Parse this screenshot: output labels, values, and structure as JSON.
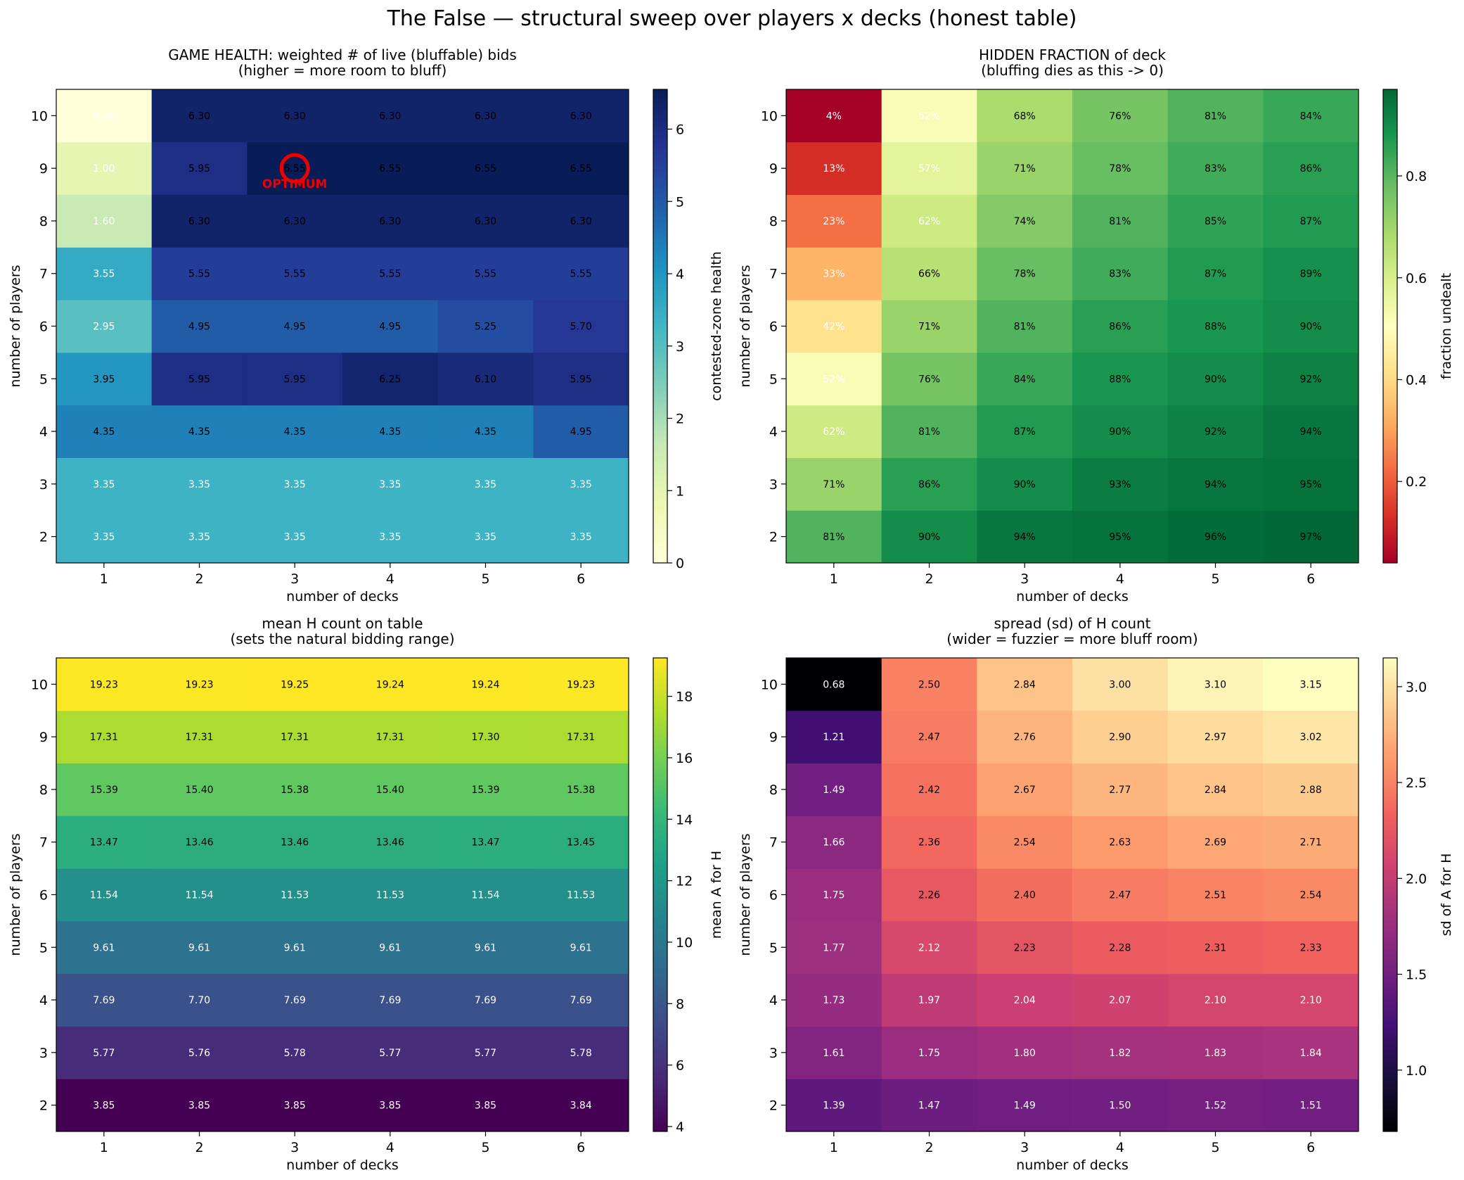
{
  "suptitle": "The False — structural sweep over players x decks (honest table)",
  "chart_data": [
    {
      "type": "heatmap",
      "title_lines": [
        "GAME HEALTH: weighted # of live (bluffable) bids",
        "(higher = more room to bluff)"
      ],
      "xlabel": "number of decks",
      "ylabel": "number of players",
      "x": [
        1,
        2,
        3,
        4,
        5,
        6
      ],
      "y": [
        2,
        3,
        4,
        5,
        6,
        7,
        8,
        9,
        10
      ],
      "values": [
        [
          3.35,
          3.35,
          3.35,
          3.35,
          3.35,
          3.35
        ],
        [
          3.35,
          3.35,
          3.35,
          3.35,
          3.35,
          3.35
        ],
        [
          4.35,
          4.35,
          4.35,
          4.35,
          4.35,
          4.95
        ],
        [
          3.95,
          5.95,
          5.95,
          6.25,
          6.1,
          5.95
        ],
        [
          2.95,
          4.95,
          4.95,
          4.95,
          5.25,
          5.7
        ],
        [
          3.55,
          5.55,
          5.55,
          5.55,
          5.55,
          5.55
        ],
        [
          1.6,
          6.3,
          6.3,
          6.3,
          6.3,
          6.3
        ],
        [
          1.0,
          5.95,
          6.55,
          6.55,
          6.55,
          6.55
        ],
        [
          0.0,
          6.3,
          6.3,
          6.3,
          6.3,
          6.3
        ]
      ],
      "cell_labels": [
        [
          "3.35",
          "3.35",
          "3.35",
          "3.35",
          "3.35",
          "3.35"
        ],
        [
          "3.35",
          "3.35",
          "3.35",
          "3.35",
          "3.35",
          "3.35"
        ],
        [
          "4.35",
          "4.35",
          "4.35",
          "4.35",
          "4.35",
          "4.95"
        ],
        [
          "3.95",
          "5.95",
          "5.95",
          "6.25",
          "6.10",
          "5.95"
        ],
        [
          "2.95",
          "4.95",
          "4.95",
          "4.95",
          "5.25",
          "5.70"
        ],
        [
          "3.55",
          "5.55",
          "5.55",
          "5.55",
          "5.55",
          "5.55"
        ],
        [
          "1.60",
          "6.30",
          "6.30",
          "6.30",
          "6.30",
          "6.30"
        ],
        [
          "1.00",
          "5.95",
          "6.55",
          "6.55",
          "6.55",
          "6.55"
        ],
        [
          "0.00",
          "6.30",
          "6.30",
          "6.30",
          "6.30",
          "6.30"
        ]
      ],
      "colormap": "YlGnBu",
      "vmin": 0,
      "vmax": 6.55,
      "colorbar_label": "contested-zone health",
      "colorbar_ticks": [
        0,
        1,
        2,
        3,
        4,
        5,
        6
      ],
      "colorbar_tick_labels": [
        "0",
        "1",
        "2",
        "3",
        "4",
        "5",
        "6"
      ],
      "text_dark_above": 0.6,
      "marker": {
        "label": "OPTIMUM",
        "decks": 3,
        "players": 9,
        "color": "#ee0000"
      }
    },
    {
      "type": "heatmap",
      "title_lines": [
        "HIDDEN FRACTION of deck",
        "(bluffing dies as this -> 0)"
      ],
      "xlabel": "number of decks",
      "ylabel": "number of players",
      "x": [
        1,
        2,
        3,
        4,
        5,
        6
      ],
      "y": [
        2,
        3,
        4,
        5,
        6,
        7,
        8,
        9,
        10
      ],
      "values": [
        [
          0.81,
          0.9,
          0.94,
          0.95,
          0.96,
          0.97
        ],
        [
          0.71,
          0.86,
          0.9,
          0.93,
          0.94,
          0.95
        ],
        [
          0.62,
          0.81,
          0.87,
          0.9,
          0.92,
          0.94
        ],
        [
          0.52,
          0.76,
          0.84,
          0.88,
          0.9,
          0.92
        ],
        [
          0.42,
          0.71,
          0.81,
          0.86,
          0.88,
          0.9
        ],
        [
          0.33,
          0.66,
          0.78,
          0.83,
          0.87,
          0.89
        ],
        [
          0.23,
          0.62,
          0.74,
          0.81,
          0.85,
          0.87
        ],
        [
          0.13,
          0.57,
          0.71,
          0.78,
          0.83,
          0.86
        ],
        [
          0.04,
          0.52,
          0.68,
          0.76,
          0.81,
          0.84
        ]
      ],
      "cell_labels": [
        [
          "81%",
          "90%",
          "94%",
          "95%",
          "96%",
          "97%"
        ],
        [
          "71%",
          "86%",
          "90%",
          "93%",
          "94%",
          "95%"
        ],
        [
          "62%",
          "81%",
          "87%",
          "90%",
          "92%",
          "94%"
        ],
        [
          "52%",
          "76%",
          "84%",
          "88%",
          "90%",
          "92%"
        ],
        [
          "42%",
          "71%",
          "81%",
          "86%",
          "88%",
          "90%"
        ],
        [
          "33%",
          "66%",
          "78%",
          "83%",
          "87%",
          "89%"
        ],
        [
          "23%",
          "62%",
          "74%",
          "81%",
          "85%",
          "87%"
        ],
        [
          "13%",
          "57%",
          "71%",
          "78%",
          "83%",
          "86%"
        ],
        [
          "4%",
          "52%",
          "68%",
          "76%",
          "81%",
          "84%"
        ]
      ],
      "colormap": "RdYlGn",
      "vmin": 0.04,
      "vmax": 0.97,
      "colorbar_label": "fraction undealt",
      "colorbar_ticks": [
        0.2,
        0.4,
        0.6,
        0.8
      ],
      "colorbar_tick_labels": [
        "0.2",
        "0.4",
        "0.6",
        "0.8"
      ],
      "text_dark_above": 0.66
    },
    {
      "type": "heatmap",
      "title_lines": [
        "mean H count on table",
        "(sets the natural bidding range)"
      ],
      "xlabel": "number of decks",
      "ylabel": "number of players",
      "x": [
        1,
        2,
        3,
        4,
        5,
        6
      ],
      "y": [
        2,
        3,
        4,
        5,
        6,
        7,
        8,
        9,
        10
      ],
      "values": [
        [
          3.85,
          3.85,
          3.85,
          3.85,
          3.85,
          3.84
        ],
        [
          5.77,
          5.76,
          5.78,
          5.77,
          5.77,
          5.78
        ],
        [
          7.69,
          7.7,
          7.69,
          7.69,
          7.69,
          7.69
        ],
        [
          9.61,
          9.61,
          9.61,
          9.61,
          9.61,
          9.61
        ],
        [
          11.54,
          11.54,
          11.53,
          11.53,
          11.54,
          11.53
        ],
        [
          13.47,
          13.46,
          13.46,
          13.46,
          13.47,
          13.45
        ],
        [
          15.39,
          15.4,
          15.38,
          15.4,
          15.39,
          15.38
        ],
        [
          17.31,
          17.31,
          17.31,
          17.31,
          17.3,
          17.31
        ],
        [
          19.23,
          19.23,
          19.25,
          19.24,
          19.24,
          19.23
        ]
      ],
      "cell_labels": [
        [
          "3.85",
          "3.85",
          "3.85",
          "3.85",
          "3.85",
          "3.84"
        ],
        [
          "5.77",
          "5.76",
          "5.78",
          "5.77",
          "5.77",
          "5.78"
        ],
        [
          "7.69",
          "7.70",
          "7.69",
          "7.69",
          "7.69",
          "7.69"
        ],
        [
          "9.61",
          "9.61",
          "9.61",
          "9.61",
          "9.61",
          "9.61"
        ],
        [
          "11.54",
          "11.54",
          "11.53",
          "11.53",
          "11.54",
          "11.53"
        ],
        [
          "13.47",
          "13.46",
          "13.46",
          "13.46",
          "13.47",
          "13.45"
        ],
        [
          "15.39",
          "15.40",
          "15.38",
          "15.40",
          "15.39",
          "15.38"
        ],
        [
          "17.31",
          "17.31",
          "17.31",
          "17.31",
          "17.30",
          "17.31"
        ],
        [
          "19.23",
          "19.23",
          "19.25",
          "19.24",
          "19.24",
          "19.23"
        ]
      ],
      "colormap": "viridis",
      "vmin": 3.84,
      "vmax": 19.25,
      "colorbar_label": "mean A for H",
      "colorbar_ticks": [
        4,
        6,
        8,
        10,
        12,
        14,
        16,
        18
      ],
      "colorbar_tick_labels": [
        "4",
        "6",
        "8",
        "10",
        "12",
        "14",
        "16",
        "18"
      ],
      "text_dark_above": 0.62
    },
    {
      "type": "heatmap",
      "title_lines": [
        "spread (sd) of H count",
        "(wider = fuzzier = more bluff room)"
      ],
      "xlabel": "number of decks",
      "ylabel": "number of players",
      "x": [
        1,
        2,
        3,
        4,
        5,
        6
      ],
      "y": [
        2,
        3,
        4,
        5,
        6,
        7,
        8,
        9,
        10
      ],
      "values": [
        [
          1.39,
          1.47,
          1.49,
          1.5,
          1.52,
          1.51
        ],
        [
          1.61,
          1.75,
          1.8,
          1.82,
          1.83,
          1.84
        ],
        [
          1.73,
          1.97,
          2.04,
          2.07,
          2.1,
          2.1
        ],
        [
          1.77,
          2.12,
          2.23,
          2.28,
          2.31,
          2.33
        ],
        [
          1.75,
          2.26,
          2.4,
          2.47,
          2.51,
          2.54
        ],
        [
          1.66,
          2.36,
          2.54,
          2.63,
          2.69,
          2.71
        ],
        [
          1.49,
          2.42,
          2.67,
          2.77,
          2.84,
          2.88
        ],
        [
          1.21,
          2.47,
          2.76,
          2.9,
          2.97,
          3.02
        ],
        [
          0.68,
          2.5,
          2.84,
          3.0,
          3.1,
          3.15
        ]
      ],
      "cell_labels": [
        [
          "1.39",
          "1.47",
          "1.49",
          "1.50",
          "1.52",
          "1.51"
        ],
        [
          "1.61",
          "1.75",
          "1.80",
          "1.82",
          "1.83",
          "1.84"
        ],
        [
          "1.73",
          "1.97",
          "2.04",
          "2.07",
          "2.10",
          "2.10"
        ],
        [
          "1.77",
          "2.12",
          "2.23",
          "2.28",
          "2.31",
          "2.33"
        ],
        [
          "1.75",
          "2.26",
          "2.40",
          "2.47",
          "2.51",
          "2.54"
        ],
        [
          "1.66",
          "2.36",
          "2.54",
          "2.63",
          "2.69",
          "2.71"
        ],
        [
          "1.49",
          "2.42",
          "2.67",
          "2.77",
          "2.84",
          "2.88"
        ],
        [
          "1.21",
          "2.47",
          "2.76",
          "2.90",
          "2.97",
          "3.02"
        ],
        [
          "0.68",
          "2.50",
          "2.84",
          "3.00",
          "3.10",
          "3.15"
        ]
      ],
      "colormap": "magma",
      "vmin": 0.68,
      "vmax": 3.15,
      "colorbar_label": "sd of A for H",
      "colorbar_ticks": [
        1.0,
        1.5,
        2.0,
        2.5,
        3.0
      ],
      "colorbar_tick_labels": [
        "1.0",
        "1.5",
        "2.0",
        "2.5",
        "3.0"
      ],
      "text_dark_above": 0.62
    }
  ],
  "colormaps": {
    "YlGnBu": [
      "#ffffd9",
      "#edf8b1",
      "#c7e9b4",
      "#7fcdbb",
      "#41b6c4",
      "#1d91c0",
      "#225ea8",
      "#253494",
      "#081d58"
    ],
    "RdYlGn": [
      "#a50026",
      "#d73027",
      "#f46d43",
      "#fdae61",
      "#fee08b",
      "#ffffbf",
      "#d9ef8b",
      "#a6d96a",
      "#66bd63",
      "#1a9850",
      "#006837"
    ],
    "viridis": [
      "#440154",
      "#482878",
      "#3e4989",
      "#31688e",
      "#26828e",
      "#1f9e89",
      "#35b779",
      "#6ece58",
      "#b5de2b",
      "#fde725"
    ],
    "magma": [
      "#000004",
      "#180f3d",
      "#440f76",
      "#721f81",
      "#9e2f7f",
      "#cd4071",
      "#f1605d",
      "#fd9668",
      "#feca8d",
      "#fcfdbf"
    ]
  }
}
